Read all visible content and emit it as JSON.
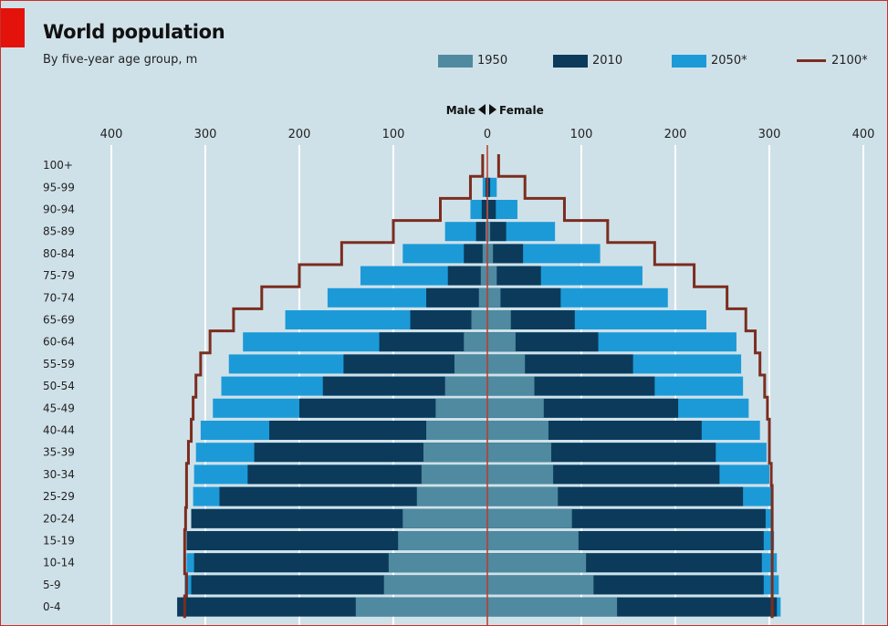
{
  "header": {
    "title": "World population",
    "subtitle": "By five-year age group, m"
  },
  "legend": [
    {
      "label": "1950",
      "kind": "box",
      "color": "#4f8aa0"
    },
    {
      "label": "2010",
      "kind": "box",
      "color": "#0c3a5a"
    },
    {
      "label": "2050*",
      "kind": "box",
      "color": "#1c9ad8"
    },
    {
      "label": "2100*",
      "kind": "line",
      "color": "#7b2d1f"
    }
  ],
  "colors": {
    "background": "#cfe1e8",
    "gridline": "#ffffff",
    "center_line": "#c0392b",
    "accent": "#e3120b"
  },
  "chart_data": {
    "type": "bar",
    "subtype": "population-pyramid",
    "title": "World population",
    "subtitle": "By five-year age group, m",
    "direction_label": {
      "left": "Male",
      "right": "Female"
    },
    "axis_ticks": [
      "400",
      "300",
      "200",
      "100",
      "0",
      "100",
      "200",
      "300",
      "400"
    ],
    "xlim": [
      -400,
      400
    ],
    "categories": [
      "100+",
      "95-99",
      "90-94",
      "85-89",
      "80-84",
      "75-79",
      "70-74",
      "65-69",
      "60-64",
      "55-59",
      "50-54",
      "45-49",
      "40-44",
      "35-39",
      "30-34",
      "25-29",
      "20-24",
      "15-19",
      "10-14",
      "5-9",
      "0-4"
    ],
    "series": [
      {
        "name": "2050*",
        "kind": "bar",
        "male": [
          0,
          5,
          18,
          45,
          90,
          135,
          170,
          215,
          260,
          275,
          283,
          292,
          305,
          310,
          312,
          313,
          315,
          318,
          320,
          322,
          325
        ],
        "female": [
          0,
          10,
          32,
          72,
          120,
          165,
          192,
          233,
          265,
          270,
          272,
          278,
          290,
          297,
          300,
          303,
          303,
          305,
          308,
          310,
          312
        ]
      },
      {
        "name": "2010",
        "kind": "bar",
        "male": [
          0,
          2,
          6,
          12,
          25,
          42,
          65,
          82,
          115,
          153,
          175,
          200,
          232,
          248,
          255,
          285,
          315,
          320,
          312,
          315,
          330
        ],
        "female": [
          0,
          3,
          9,
          20,
          38,
          57,
          78,
          93,
          118,
          155,
          178,
          203,
          228,
          243,
          247,
          272,
          296,
          294,
          292,
          294,
          308
        ]
      },
      {
        "name": "1950",
        "kind": "bar",
        "male": [
          0,
          0,
          1,
          2,
          5,
          7,
          9,
          17,
          25,
          35,
          45,
          55,
          65,
          68,
          70,
          75,
          90,
          95,
          105,
          110,
          140
        ],
        "female": [
          0,
          0,
          1,
          3,
          6,
          10,
          14,
          25,
          30,
          40,
          50,
          60,
          65,
          68,
          70,
          75,
          90,
          97,
          105,
          113,
          138
        ]
      },
      {
        "name": "2100*",
        "kind": "step-line",
        "male": [
          5,
          18,
          50,
          100,
          155,
          200,
          240,
          270,
          295,
          305,
          310,
          313,
          315,
          318,
          320,
          320,
          321,
          322,
          322,
          320,
          322
        ],
        "female": [
          12,
          40,
          82,
          128,
          178,
          220,
          255,
          275,
          285,
          290,
          295,
          298,
          300,
          300,
          302,
          303,
          303,
          303,
          303,
          303,
          303
        ]
      }
    ]
  }
}
